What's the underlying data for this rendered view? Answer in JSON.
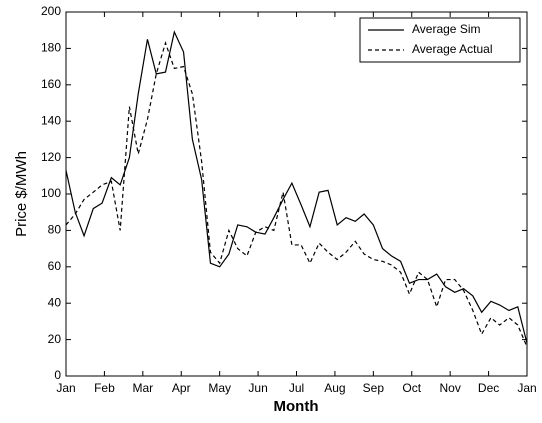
{
  "chart_data": {
    "type": "line",
    "xlabel": "Month",
    "ylabel": "Price $/MWh",
    "xlim": [
      0,
      12
    ],
    "xticks": [
      {
        "value": 0,
        "label": "Jan"
      },
      {
        "value": 1,
        "label": "Feb"
      },
      {
        "value": 2,
        "label": "Mar"
      },
      {
        "value": 3,
        "label": "Apr"
      },
      {
        "value": 4,
        "label": "May"
      },
      {
        "value": 5,
        "label": "Jun"
      },
      {
        "value": 6,
        "label": "Jul"
      },
      {
        "value": 7,
        "label": "Aug"
      },
      {
        "value": 8,
        "label": "Sep"
      },
      {
        "value": 9,
        "label": "Oct"
      },
      {
        "value": 10,
        "label": "Nov"
      },
      {
        "value": 11,
        "label": "Dec"
      },
      {
        "value": 12,
        "label": "Jan"
      }
    ],
    "ylim": [
      0,
      200
    ],
    "yticks": [
      0,
      20,
      40,
      60,
      80,
      100,
      120,
      140,
      160,
      180,
      200
    ],
    "legend": "upper-right",
    "x": [
      0,
      0.24,
      0.47,
      0.71,
      0.94,
      1.18,
      1.41,
      1.65,
      1.88,
      2.12,
      2.35,
      2.59,
      2.82,
      3.06,
      3.29,
      3.53,
      3.76,
      4.0,
      4.24,
      4.47,
      4.71,
      4.94,
      5.18,
      5.41,
      5.65,
      5.88,
      6.12,
      6.35,
      6.59,
      6.82,
      7.06,
      7.29,
      7.53,
      7.76,
      8.0,
      8.24,
      8.47,
      8.71,
      8.94,
      9.18,
      9.41,
      9.65,
      9.88,
      10.12,
      10.35,
      10.59,
      10.82,
      11.06,
      11.29,
      11.53,
      11.76,
      12.0
    ],
    "series": [
      {
        "name": "Average Sim",
        "color": "#000000",
        "style": "solid",
        "values": [
          113,
          90,
          77,
          92,
          95,
          109,
          105,
          120,
          155,
          185,
          166,
          167,
          189,
          178,
          130,
          108,
          62,
          60,
          67,
          83,
          82,
          79,
          78,
          87,
          97,
          106,
          94,
          82,
          101,
          102,
          83,
          87,
          85,
          89,
          83,
          70,
          66,
          63,
          51,
          53,
          53,
          56,
          49,
          46,
          48,
          44,
          35,
          41,
          39,
          36,
          38,
          18
        ]
      },
      {
        "name": "Average Actual",
        "color": "#000000",
        "style": "dashed",
        "values": [
          83,
          89,
          97,
          101,
          105,
          107,
          80,
          148,
          122,
          141,
          166,
          183,
          169,
          170,
          155,
          118,
          68,
          62,
          80,
          70,
          66,
          79,
          82,
          80,
          101,
          72,
          72,
          62,
          73,
          68,
          64,
          68,
          74,
          67,
          64,
          63,
          61,
          57,
          45,
          57,
          53,
          38,
          53,
          53,
          47,
          36,
          23,
          32,
          28,
          32,
          28,
          16
        ]
      }
    ]
  }
}
